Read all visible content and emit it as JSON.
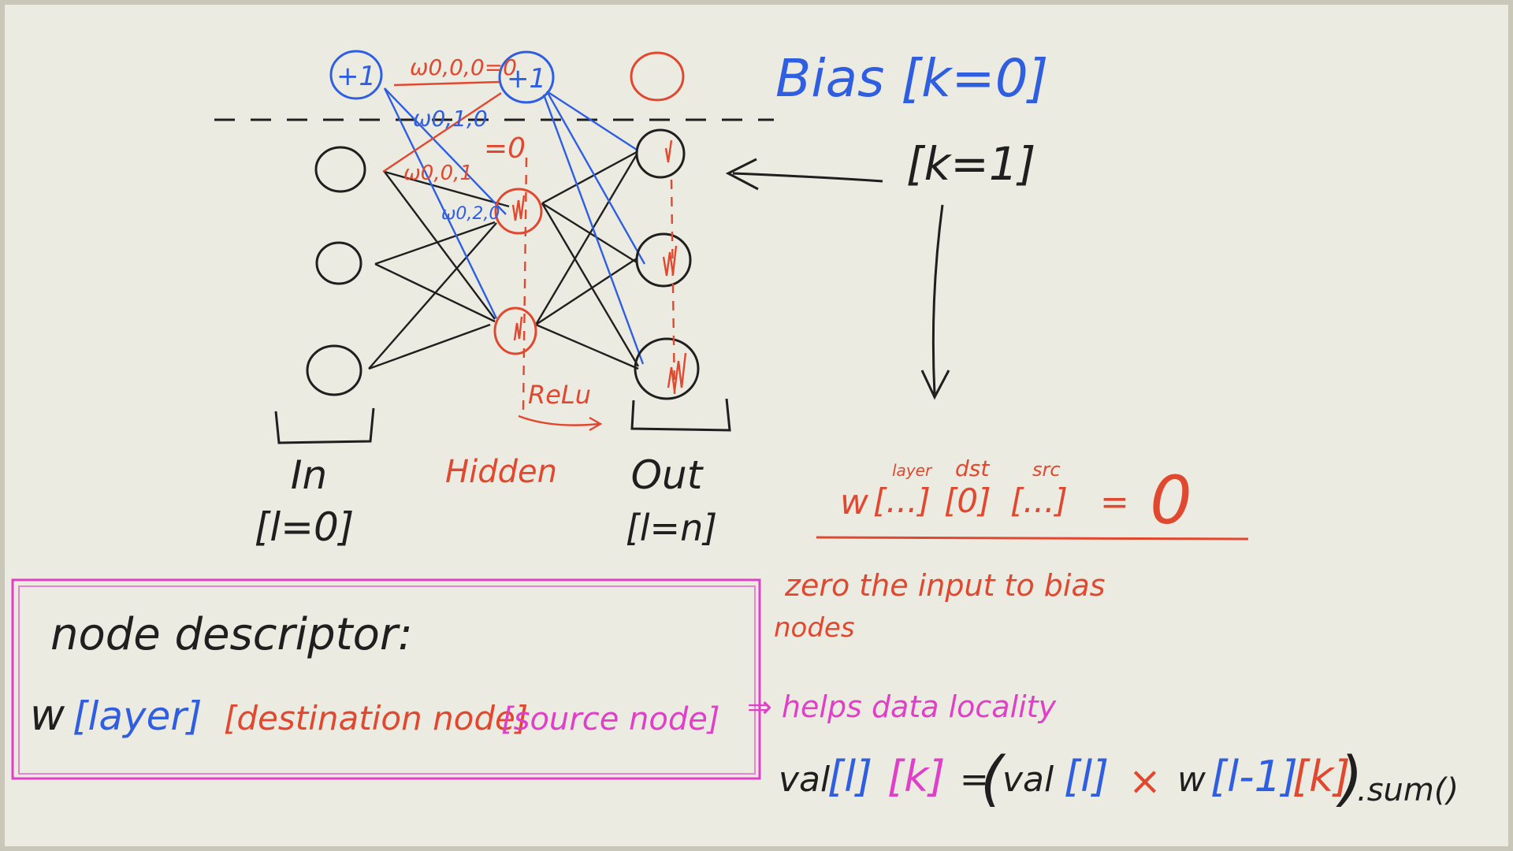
{
  "colors": {
    "background": "#ecebe1",
    "ink_black": "#1f1f1f",
    "ink_blue": "#2f5fe0",
    "ink_red": "#e0482f",
    "ink_magenta": "#e040c8"
  },
  "network": {
    "bias_node_in": "+1",
    "bias_node_hidden": "+1",
    "weights": {
      "w000": "ω0,0,0=0",
      "w010": "ω0,1,0",
      "w001": "ω0,0,1",
      "w001_value": "=0",
      "w020": "ω0,2,0"
    },
    "relu": "ReLu",
    "bias_title": "Bias [k=0]",
    "k1_label": "[k=1]",
    "layers": {
      "in_name": "In",
      "in_index": "[l=0]",
      "hidden_name": "Hidden",
      "out_name": "Out",
      "out_index": "[l=n]"
    }
  },
  "formula_top": {
    "tag_layer": "layer",
    "tag_dst": "dst",
    "tag_src": "src",
    "w": "w",
    "part_layer": "[...]",
    "part_dst": "[0]",
    "part_src": "[...]",
    "equals": "=",
    "zero": "0"
  },
  "notes": {
    "zero_line1": "zero the input to bias",
    "zero_line2": "nodes",
    "helps": "⇒ helps data locality"
  },
  "descriptor": {
    "title": "node descriptor:",
    "w": "w",
    "layer": "[layer]",
    "destination": "[destination node]",
    "source": "[source node]"
  },
  "val_formula": {
    "val1": "val",
    "l1": "[l]",
    "k1": "[k]",
    "eq": "=",
    "open": "(",
    "val2": "val",
    "l2": "[l]",
    "times": "×",
    "w": "w",
    "lm1": "[l-1]",
    "k2": "[k]",
    "close": ")",
    "sum": ".sum()"
  }
}
